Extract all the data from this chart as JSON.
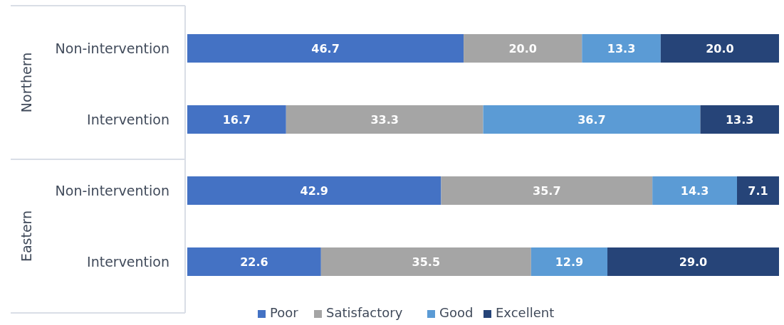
{
  "chart_data": {
    "type": "bar",
    "orientation": "horizontal",
    "stacked": true,
    "legend": "bottom",
    "tick_labels": "y",
    "xlim": [
      0,
      100
    ],
    "categories": [
      "Non-intervention",
      "Intervention",
      "Non-intervention",
      "Intervention"
    ],
    "annotations": [
      "Northern",
      "Eastern"
    ],
    "series": [
      {
        "name": "Poor",
        "color": "#4472c4",
        "values": [
          46.7,
          16.7,
          42.9,
          22.6
        ],
        "value_labels": [
          "46.7",
          "16.7",
          "42.9",
          "22.6"
        ]
      },
      {
        "name": "Satisfactory",
        "color": "#a5a5a5",
        "values": [
          20.0,
          33.3,
          35.7,
          35.5
        ],
        "value_labels": [
          "20.0",
          "33.3",
          "35.7",
          "35.5"
        ]
      },
      {
        "name": "Good",
        "color": "#5b9bd5",
        "values": [
          13.3,
          36.7,
          14.3,
          12.9
        ],
        "value_labels": [
          "13.3",
          "36.7",
          "14.3",
          "12.9"
        ]
      },
      {
        "name": "Excellent",
        "color": "#264478",
        "values": [
          20.0,
          13.3,
          7.1,
          29.0
        ],
        "value_labels": [
          "20.0",
          "13.3",
          "7.1",
          "29.0"
        ]
      }
    ]
  }
}
